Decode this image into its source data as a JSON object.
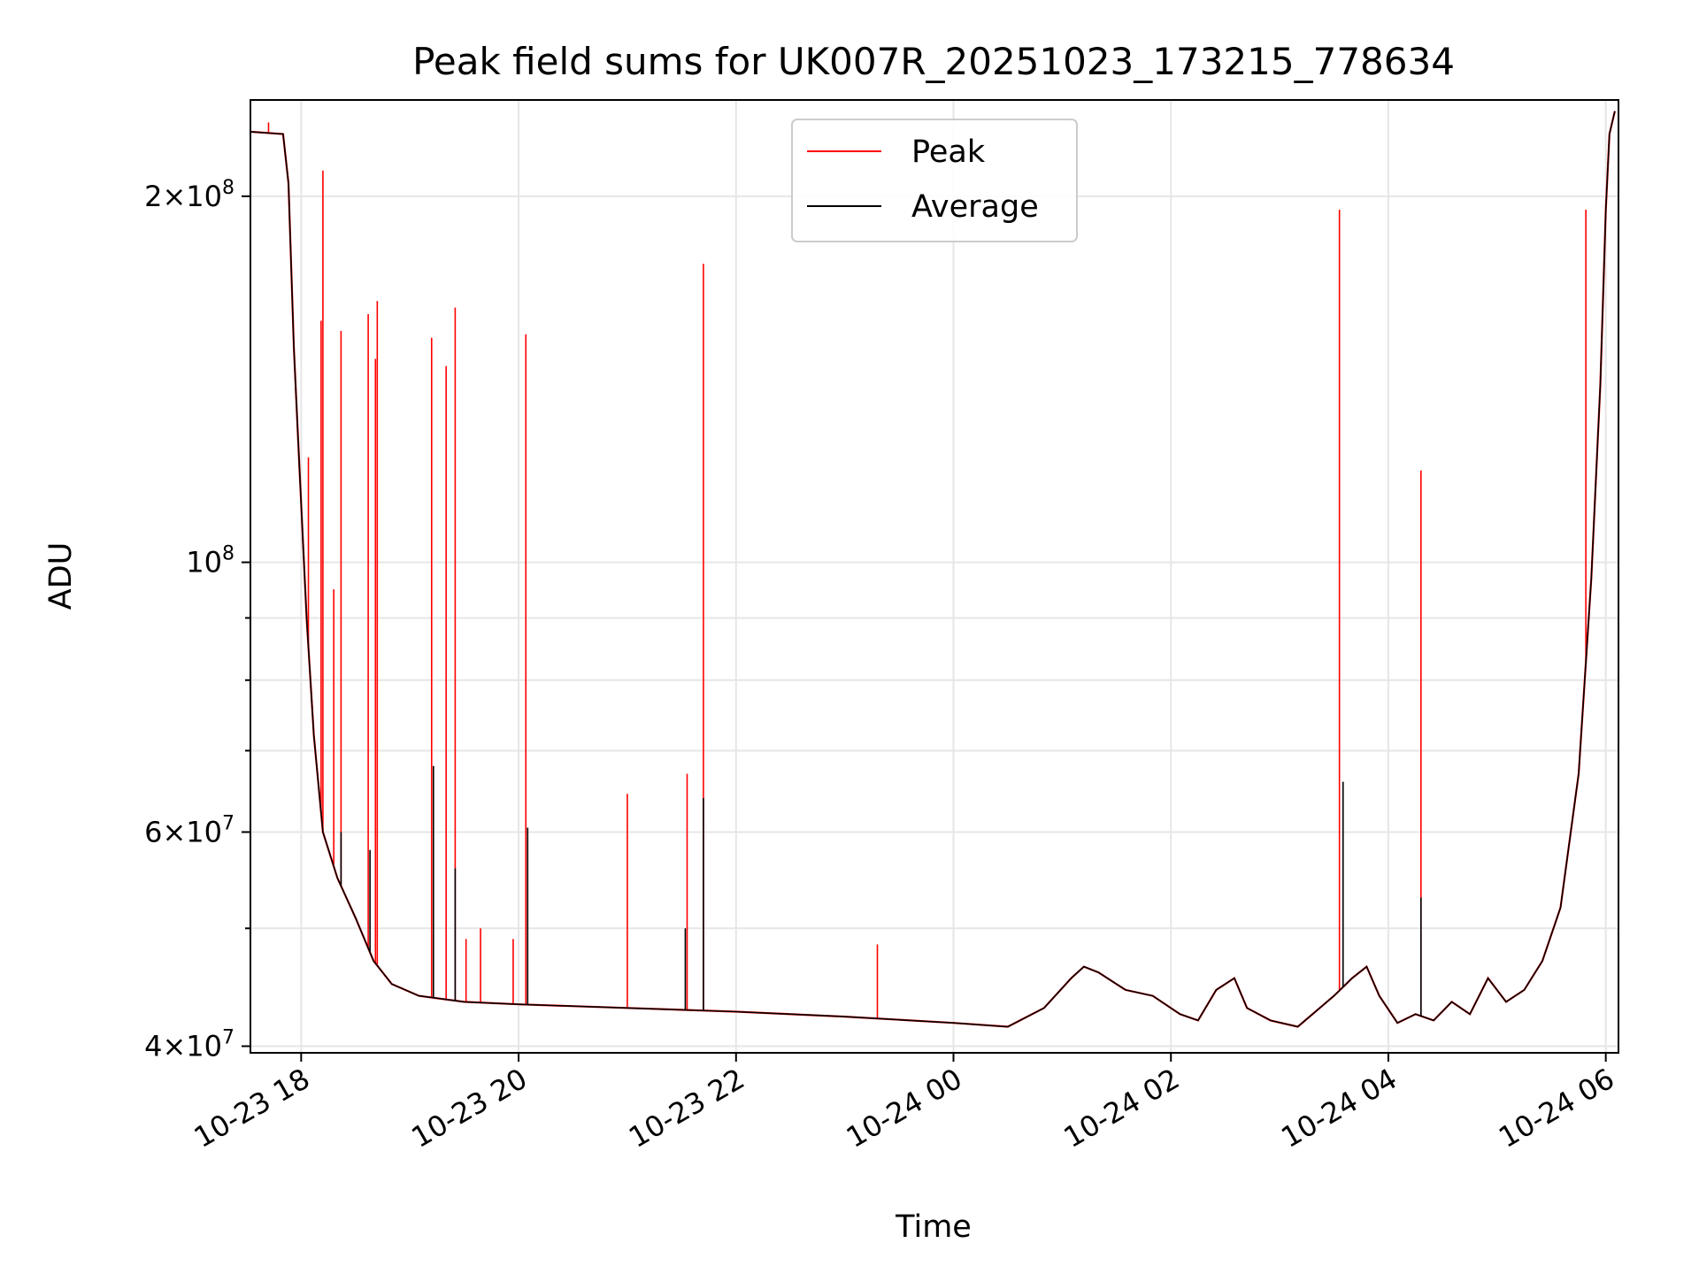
{
  "chart_data": {
    "type": "line",
    "title": "Peak field sums for UK007R_20251023_173215_778634",
    "xlabel": "Time",
    "ylabel": "ADU",
    "y_scale": "log",
    "ylim": [
      39500000,
      240000000
    ],
    "xlim": [
      "2025-10-23 17:32",
      "2025-10-24 06:07"
    ],
    "grid": true,
    "legend_position": "top-center",
    "x_ticks": [
      {
        "t": "2025-10-23 18:00",
        "label": "10-23 18"
      },
      {
        "t": "2025-10-23 20:00",
        "label": "10-23 20"
      },
      {
        "t": "2025-10-23 22:00",
        "label": "10-23 22"
      },
      {
        "t": "2025-10-24 00:00",
        "label": "10-24 00"
      },
      {
        "t": "2025-10-24 02:00",
        "label": "10-24 02"
      },
      {
        "t": "2025-10-24 04:00",
        "label": "10-24 04"
      },
      {
        "t": "2025-10-24 06:00",
        "label": "10-24 06"
      }
    ],
    "y_ticks": [
      {
        "value": 40000000,
        "base": "4",
        "exp": "7"
      },
      {
        "value": 60000000,
        "base": "6",
        "exp": "7"
      },
      {
        "value": 100000000,
        "base": "",
        "exp": "8"
      },
      {
        "value": 200000000,
        "base": "2",
        "exp": "8"
      }
    ],
    "y_minor_ticks": [
      50000000,
      70000000,
      80000000,
      90000000
    ],
    "series": [
      {
        "name": "Average",
        "color": "#000000",
        "points": [
          [
            "2025-10-23 17:32",
            226000000
          ],
          [
            "2025-10-23 17:50",
            225000000
          ],
          [
            "2025-10-23 17:53",
            205000000
          ],
          [
            "2025-10-23 17:56",
            150000000
          ],
          [
            "2025-10-23 17:59",
            120000000
          ],
          [
            "2025-10-23 18:03",
            90000000
          ],
          [
            "2025-10-23 18:07",
            72000000
          ],
          [
            "2025-10-23 18:12",
            60000000
          ],
          [
            "2025-10-23 18:20",
            55000000
          ],
          [
            "2025-10-23 18:30",
            51000000
          ],
          [
            "2025-10-23 18:40",
            47000000
          ],
          [
            "2025-10-23 18:50",
            45000000
          ],
          [
            "2025-10-23 19:05",
            44000000
          ],
          [
            "2025-10-23 19:30",
            43500000
          ],
          [
            "2025-10-23 20:00",
            43300000
          ],
          [
            "2025-10-23 21:00",
            43000000
          ],
          [
            "2025-10-23 22:00",
            42700000
          ],
          [
            "2025-10-23 23:00",
            42300000
          ],
          [
            "2025-10-24 00:00",
            41800000
          ],
          [
            "2025-10-24 00:30",
            41500000
          ],
          [
            "2025-10-24 00:50",
            43000000
          ],
          [
            "2025-10-24 01:05",
            45500000
          ],
          [
            "2025-10-24 01:12",
            46500000
          ],
          [
            "2025-10-24 01:20",
            46000000
          ],
          [
            "2025-10-24 01:35",
            44500000
          ],
          [
            "2025-10-24 01:50",
            44000000
          ],
          [
            "2025-10-24 02:05",
            42500000
          ],
          [
            "2025-10-24 02:15",
            42000000
          ],
          [
            "2025-10-24 02:25",
            44500000
          ],
          [
            "2025-10-24 02:35",
            45500000
          ],
          [
            "2025-10-24 02:42",
            43000000
          ],
          [
            "2025-10-24 02:55",
            42000000
          ],
          [
            "2025-10-24 03:10",
            41500000
          ],
          [
            "2025-10-24 03:30",
            44000000
          ],
          [
            "2025-10-24 03:40",
            45500000
          ],
          [
            "2025-10-24 03:48",
            46500000
          ],
          [
            "2025-10-24 03:55",
            44000000
          ],
          [
            "2025-10-24 04:05",
            41800000
          ],
          [
            "2025-10-24 04:15",
            42500000
          ],
          [
            "2025-10-24 04:25",
            42000000
          ],
          [
            "2025-10-24 04:35",
            43500000
          ],
          [
            "2025-10-24 04:45",
            42500000
          ],
          [
            "2025-10-24 04:55",
            45500000
          ],
          [
            "2025-10-24 05:05",
            43500000
          ],
          [
            "2025-10-24 05:15",
            44500000
          ],
          [
            "2025-10-24 05:25",
            47000000
          ],
          [
            "2025-10-24 05:35",
            52000000
          ],
          [
            "2025-10-24 05:45",
            67000000
          ],
          [
            "2025-10-24 05:52",
            97000000
          ],
          [
            "2025-10-24 05:57",
            140000000
          ],
          [
            "2025-10-24 06:00",
            195000000
          ],
          [
            "2025-10-24 06:02",
            225000000
          ],
          [
            "2025-10-24 06:05",
            235000000
          ]
        ],
        "spikes": [
          [
            "2025-10-23 18:22",
            60000000
          ],
          [
            "2025-10-23 18:38",
            58000000
          ],
          [
            "2025-10-23 19:13",
            68000000
          ],
          [
            "2025-10-23 19:25",
            56000000
          ],
          [
            "2025-10-23 20:05",
            60500000
          ],
          [
            "2025-10-23 21:32",
            50000000
          ],
          [
            "2025-10-23 21:42",
            64000000
          ],
          [
            "2025-10-24 03:35",
            66000000
          ],
          [
            "2025-10-24 04:18",
            53000000
          ]
        ]
      },
      {
        "name": "Peak",
        "color": "#ff0000",
        "spikes": [
          [
            "2025-10-23 17:42",
            230000000
          ],
          [
            "2025-10-23 18:04",
            122000000
          ],
          [
            "2025-10-23 18:12",
            210000000
          ],
          [
            "2025-10-23 18:11",
            158000000
          ],
          [
            "2025-10-23 18:18",
            95000000
          ],
          [
            "2025-10-23 18:22",
            155000000
          ],
          [
            "2025-10-23 18:37",
            160000000
          ],
          [
            "2025-10-23 18:42",
            164000000
          ],
          [
            "2025-10-23 18:41",
            147000000
          ],
          [
            "2025-10-23 19:12",
            153000000
          ],
          [
            "2025-10-23 19:20",
            145000000
          ],
          [
            "2025-10-23 19:25",
            162000000
          ],
          [
            "2025-10-23 19:31",
            49000000
          ],
          [
            "2025-10-23 19:39",
            50000000
          ],
          [
            "2025-10-23 19:57",
            49000000
          ],
          [
            "2025-10-23 20:04",
            154000000
          ],
          [
            "2025-10-23 21:00",
            64500000
          ],
          [
            "2025-10-23 21:33",
            67000000
          ],
          [
            "2025-10-23 21:42",
            176000000
          ],
          [
            "2025-10-23 23:18",
            48500000
          ],
          [
            "2025-10-24 03:33",
            195000000
          ],
          [
            "2025-10-24 04:18",
            119000000
          ],
          [
            "2025-10-24 05:49",
            195000000
          ]
        ]
      }
    ]
  }
}
